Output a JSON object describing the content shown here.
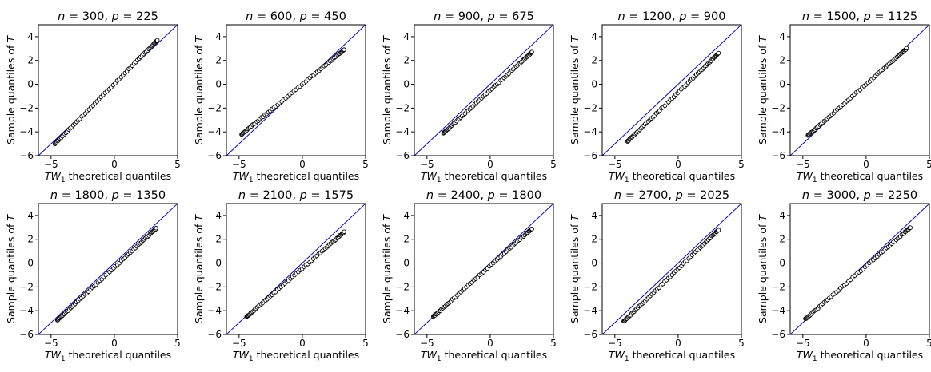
{
  "chart_data": {
    "type": "scatter",
    "layout": {
      "rows": 2,
      "cols": 5
    },
    "xlabel": "TW₁ theoretical quantiles",
    "ylabel": "Sample quantiles of T",
    "xlim": [
      -6,
      5
    ],
    "ylim": [
      -6,
      5
    ],
    "xticks": [
      -5,
      0,
      5
    ],
    "yticks": [
      -6,
      -4,
      -2,
      0,
      2,
      4
    ],
    "reference_line": "y = x",
    "grid": false,
    "colors": {
      "reference_line": "#0000cc",
      "marker_edge": "#000000",
      "marker_face": "#ffffff"
    },
    "panels": [
      {
        "title": "n = 300, p = 225",
        "x_range": [
          -4.7,
          3.4
        ],
        "y_range": [
          -5.0,
          3.7
        ]
      },
      {
        "title": "n = 600, p = 450",
        "x_range": [
          -4.8,
          3.3
        ],
        "y_range": [
          -4.2,
          2.9
        ]
      },
      {
        "title": "n = 900, p = 675",
        "x_range": [
          -3.7,
          3.3
        ],
        "y_range": [
          -4.1,
          2.7
        ]
      },
      {
        "title": "n = 1200, p = 900",
        "x_range": [
          -4.0,
          3.2
        ],
        "y_range": [
          -4.8,
          2.6
        ]
      },
      {
        "title": "n = 1500, p = 1125",
        "x_range": [
          -4.6,
          3.2
        ],
        "y_range": [
          -4.3,
          3.0
        ]
      },
      {
        "title": "n = 1800, p = 1350",
        "x_range": [
          -4.5,
          3.3
        ],
        "y_range": [
          -4.8,
          2.9
        ]
      },
      {
        "title": "n = 2100, p = 1575",
        "x_range": [
          -4.4,
          3.3
        ],
        "y_range": [
          -4.5,
          2.6
        ]
      },
      {
        "title": "n = 2400, p = 1800",
        "x_range": [
          -4.5,
          3.3
        ],
        "y_range": [
          -4.5,
          2.9
        ]
      },
      {
        "title": "n = 2700, p = 2025",
        "x_range": [
          -4.3,
          3.2
        ],
        "y_range": [
          -4.9,
          2.8
        ]
      },
      {
        "title": "n = 3000, p = 2250",
        "x_range": [
          -4.8,
          3.5
        ],
        "y_range": [
          -4.7,
          3.0
        ]
      }
    ]
  }
}
